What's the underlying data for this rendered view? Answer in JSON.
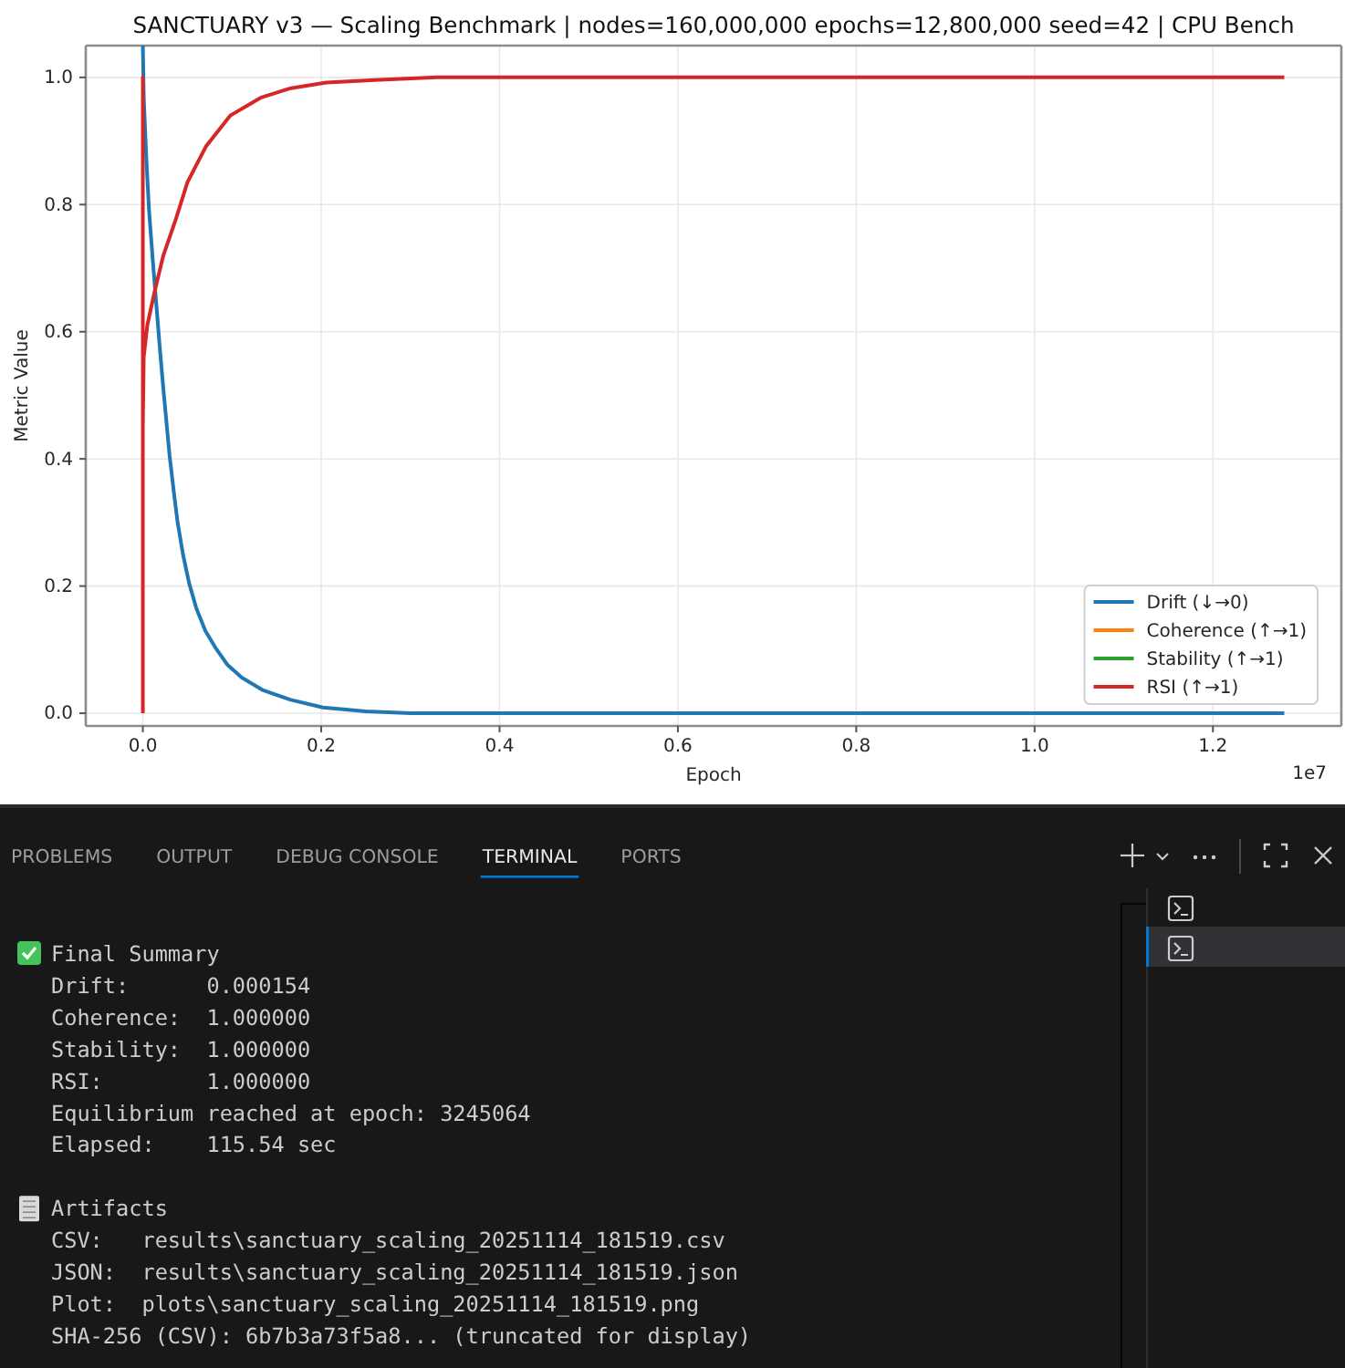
{
  "chart_data": {
    "type": "line",
    "title": "SANCTUARY v3 — Scaling Benchmark | nodes=160,000,000 epochs=12,800,000 seed=42 | CPU Bench",
    "xlabel": "Epoch",
    "ylabel": "Metric Value",
    "xlim": [
      -0.064,
      1.344
    ],
    "xticks": [
      {
        "value": 0,
        "label": "0.0"
      },
      0.2,
      0.4,
      0.6,
      0.8,
      {
        "value": 1,
        "label": "1.0"
      },
      1.2
    ],
    "ylim": [
      -0.02,
      1.05
    ],
    "yticks": [
      {
        "value": 0,
        "label": "0.0"
      },
      0.2,
      0.4,
      0.6,
      0.8,
      {
        "value": 1,
        "label": "1.0"
      }
    ],
    "grid": true,
    "legend": "bottom right",
    "line_style": "solid",
    "series": [
      {
        "name": "Drift (↓→0)",
        "color": "#1f77b4",
        "x": [
          0,
          0.001,
          0.004,
          0.007,
          0.011,
          0.015,
          0.019,
          0.023,
          0.027,
          0.03,
          0.035,
          0.039,
          0.045,
          0.052,
          0.06,
          0.07,
          0.081,
          0.095,
          0.111,
          0.135,
          0.166,
          0.202,
          0.25,
          0.3,
          1.28
        ],
        "values": [
          1.05,
          0.968,
          0.87,
          0.79,
          0.715,
          0.645,
          0.575,
          0.51,
          0.45,
          0.405,
          0.345,
          0.3,
          0.25,
          0.204,
          0.165,
          0.13,
          0.104,
          0.076,
          0.056,
          0.036,
          0.021,
          0.009,
          0.003,
          0,
          0
        ]
      },
      {
        "name": "Coherence (↑→1)",
        "color": "#ff7f0e",
        "values": [
          null
        ]
      },
      {
        "name": "Stability (↑→1)",
        "color": "#2ca02c",
        "values": [
          null
        ]
      },
      {
        "name": "RSI (↑→1)",
        "color": "#d62728",
        "x": [
          0,
          0,
          0,
          0.001,
          0.005,
          0.013,
          0.023,
          0.037,
          0.05,
          0.071,
          0.098,
          0.132,
          0.166,
          0.206,
          0.26,
          0.33,
          1.28
        ],
        "values": [
          0,
          1,
          0.45,
          0.56,
          0.61,
          0.662,
          0.72,
          0.777,
          0.835,
          0.892,
          0.94,
          0.968,
          0.983,
          0.992,
          0.996,
          1,
          1
        ]
      }
    ],
    "annotations": [
      "1e7",
      "PROBLEMS",
      "OUTPUT",
      "DEBUG CONSOLE",
      "TERMINAL",
      "PORTS",
      "Final Summary",
      "Drift:      0.000154",
      "Coherence:  1.000000",
      "Stability:  1.000000",
      "RSI:        1.000000",
      "Equilibrium reached at epoch: 3245064",
      "Elapsed:    115.54 sec",
      "Artifacts",
      "CSV:   results\\sanctuary_scaling_20251114_181519.csv",
      "JSON:  results\\sanctuary_scaling_20251114_181519.json",
      "Plot:  plots\\sanctuary_scaling_20251114_181519.png",
      "SHA-256 (CSV): 6b7b3a73f5a8... (truncated for display)"
    ]
  }
}
